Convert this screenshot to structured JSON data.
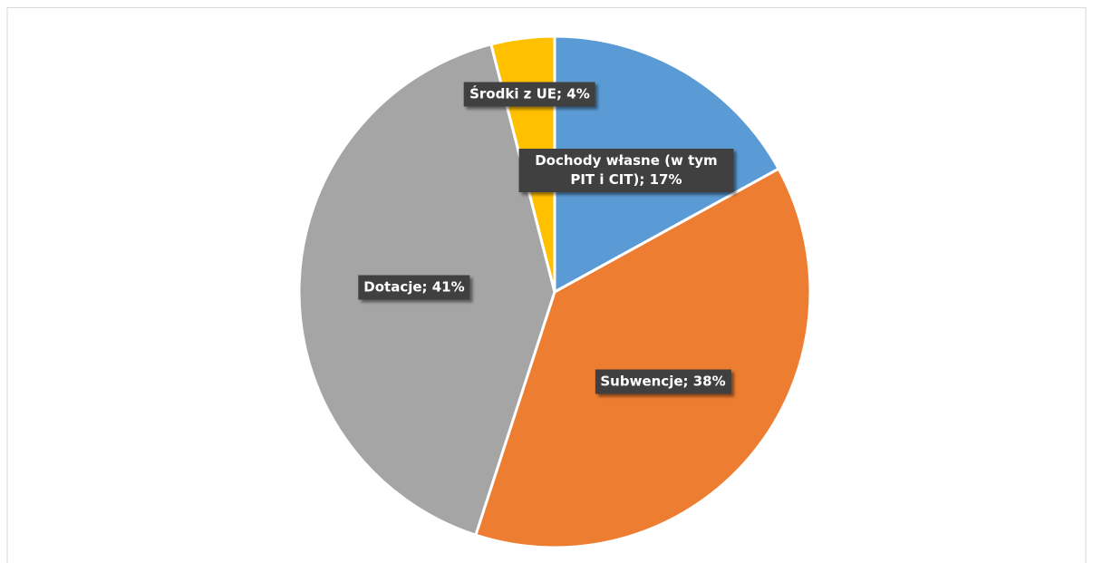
{
  "chart_data": {
    "type": "pie",
    "values": [
      17,
      38,
      41,
      4
    ],
    "value_labels": [
      "Dochody własne (w tym PIT i CIT); 17%",
      "Subwencje; 38%",
      "Dotacje; 41%",
      "Środki z UE; 4%"
    ],
    "colors": [
      "#5b9bd5",
      "#ed7d31",
      "#a5a5a5",
      "#ffc000"
    ]
  }
}
